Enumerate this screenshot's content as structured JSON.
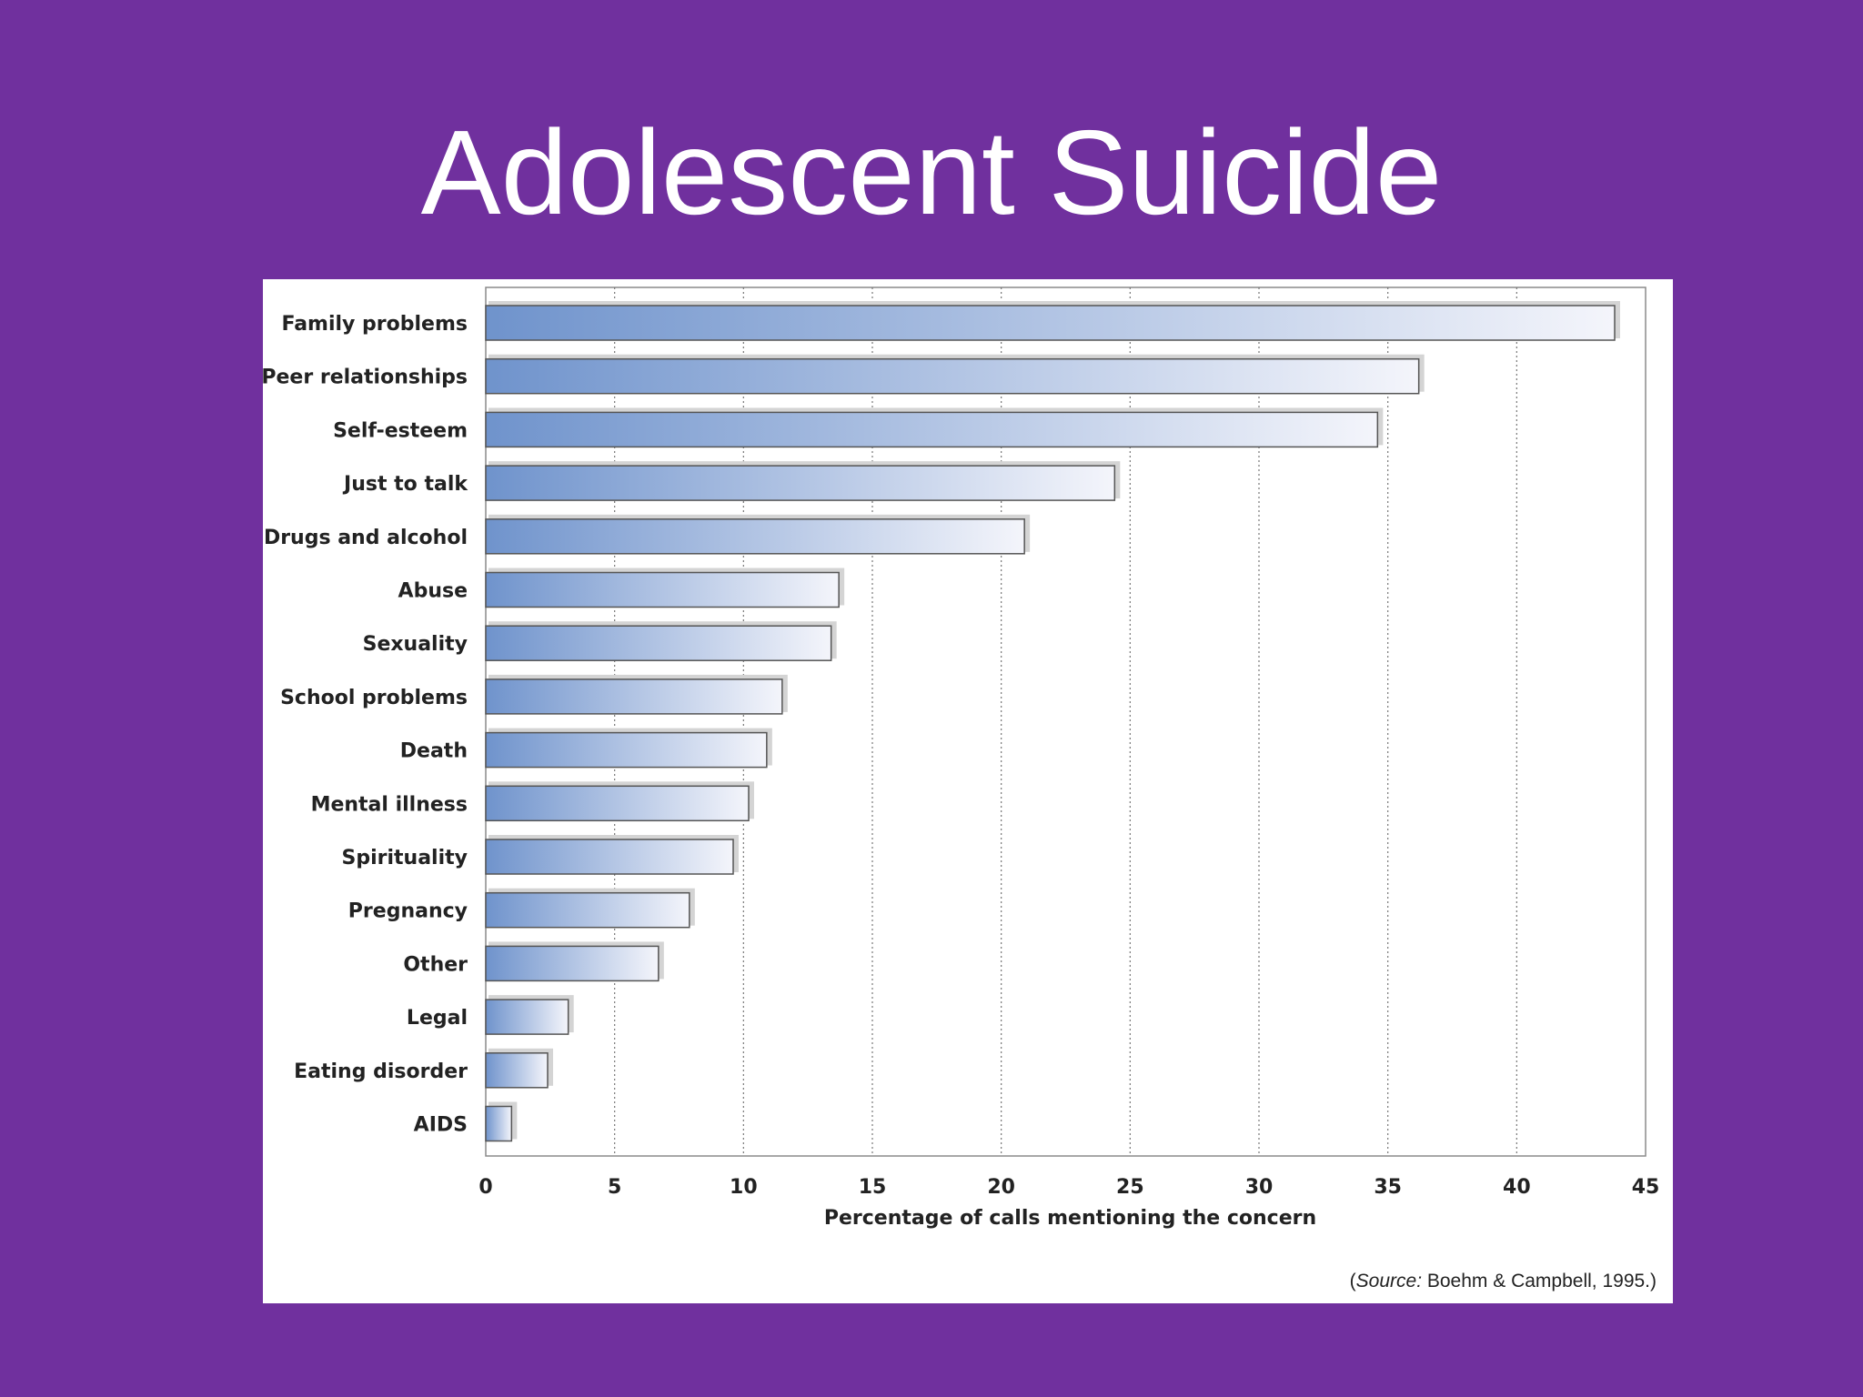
{
  "slide": {
    "title": "Adolescent Suicide",
    "background_color": "#70309e"
  },
  "source": {
    "open_paren": "(",
    "label": "Source:",
    "text": " Boehm & Campbell, 1995.)"
  },
  "chart_data": {
    "type": "bar",
    "orientation": "horizontal",
    "categories": [
      "Family problems",
      "Peer relationships",
      "Self-esteem",
      "Just to talk",
      "Drugs and alcohol",
      "Abuse",
      "Sexuality",
      "School problems",
      "Death",
      "Mental illness",
      "Spirituality",
      "Pregnancy",
      "Other",
      "Legal",
      "Eating disorder",
      "AIDS"
    ],
    "values": [
      43.8,
      36.2,
      34.6,
      24.4,
      20.9,
      13.7,
      13.4,
      11.5,
      10.9,
      10.2,
      9.6,
      7.9,
      6.7,
      3.2,
      2.4,
      1.0
    ],
    "xlabel": "Percentage of calls mentioning the concern",
    "xlim": [
      0,
      45
    ],
    "xticks": [
      0,
      5,
      10,
      15,
      20,
      25,
      30,
      35,
      40,
      45
    ],
    "grid": "vertical dotted",
    "bar_gradient": [
      "#6f93cc",
      "#f4f5fb"
    ],
    "bar_border": "#555555"
  }
}
